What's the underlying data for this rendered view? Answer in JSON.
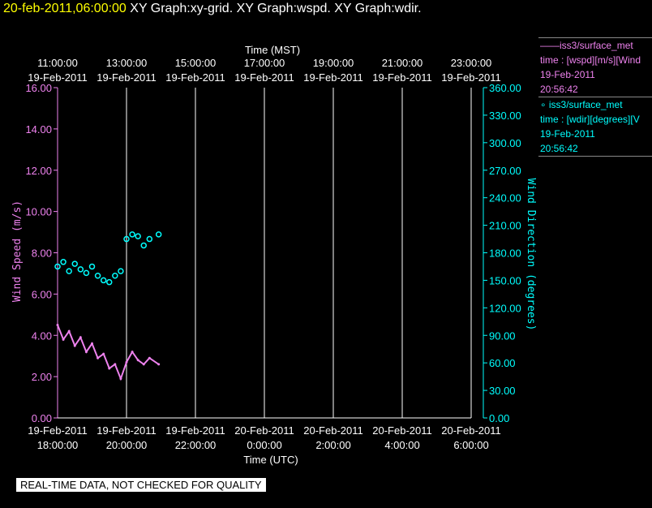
{
  "header": {
    "timestamp": "20-feb-2011,06:00:00",
    "graphs": "XY Graph:xy-grid.  XY Graph:wspd.  XY Graph:wdir."
  },
  "legend": [
    {
      "marker": "——",
      "name": "iss3/surface_met",
      "line1": "time : [wspd][m/s][Wind",
      "date": "19-Feb-2011",
      "time": "20:56:42",
      "color": "#ee82ee"
    },
    {
      "marker": "∘",
      "name": "iss3/surface_met",
      "line1": "time : [wdir][degrees][V",
      "date": "19-Feb-2011",
      "time": "20:56:42",
      "color": "#00ffff"
    }
  ],
  "notice": "REAL-TIME DATA, NOT CHECKED FOR QUALITY",
  "colors": {
    "wspd": "#ee82ee",
    "wdir": "#00ffff",
    "axis_text": "#ffffff",
    "grid": "#ffffff"
  },
  "chart_data": {
    "type": "line",
    "top_axis": {
      "label": "Time (MST)",
      "ticks": [
        {
          "time": "11:00:00",
          "date": "19-Feb-2011"
        },
        {
          "time": "13:00:00",
          "date": "19-Feb-2011"
        },
        {
          "time": "15:00:00",
          "date": "19-Feb-2011"
        },
        {
          "time": "17:00:00",
          "date": "19-Feb-2011"
        },
        {
          "time": "19:00:00",
          "date": "19-Feb-2011"
        },
        {
          "time": "21:00:00",
          "date": "19-Feb-2011"
        },
        {
          "time": "23:00:00",
          "date": "19-Feb-2011"
        }
      ]
    },
    "bottom_axis": {
      "label": "Time (UTC)",
      "ticks": [
        {
          "date": "19-Feb-2011",
          "time": "18:00:00"
        },
        {
          "date": "19-Feb-2011",
          "time": "20:00:00"
        },
        {
          "date": "19-Feb-2011",
          "time": "22:00:00"
        },
        {
          "date": "20-Feb-2011",
          "time": "0:00:00"
        },
        {
          "date": "20-Feb-2011",
          "time": "2:00:00"
        },
        {
          "date": "20-Feb-2011",
          "time": "4:00:00"
        },
        {
          "date": "20-Feb-2011",
          "time": "6:00:00"
        }
      ],
      "range_utc": [
        "2011-02-19 18:00",
        "2011-02-20 06:00"
      ]
    },
    "left_axis": {
      "label": "Wind Speed (m/s)",
      "range": [
        0,
        16
      ],
      "ticks": [
        "0.00",
        "2.00",
        "4.00",
        "6.00",
        "8.00",
        "10.00",
        "12.00",
        "14.00",
        "16.00"
      ]
    },
    "right_axis": {
      "label": "Wind Direction (degrees)",
      "range": [
        0,
        360
      ],
      "ticks": [
        "0.00",
        "30.00",
        "60.00",
        "90.00",
        "120.00",
        "150.00",
        "180.00",
        "210.00",
        "240.00",
        "270.00",
        "300.00",
        "330.00",
        "360.00"
      ]
    },
    "grid": "vertical",
    "series": [
      {
        "name": "wspd",
        "axis": "left",
        "style": "line",
        "data": [
          {
            "t": "2011-02-19 18:00",
            "v": 4.5
          },
          {
            "t": "2011-02-19 18:10",
            "v": 3.8
          },
          {
            "t": "2011-02-19 18:20",
            "v": 4.2
          },
          {
            "t": "2011-02-19 18:30",
            "v": 3.5
          },
          {
            "t": "2011-02-19 18:40",
            "v": 3.9
          },
          {
            "t": "2011-02-19 18:50",
            "v": 3.2
          },
          {
            "t": "2011-02-19 19:00",
            "v": 3.6
          },
          {
            "t": "2011-02-19 19:10",
            "v": 2.9
          },
          {
            "t": "2011-02-19 19:20",
            "v": 3.1
          },
          {
            "t": "2011-02-19 19:30",
            "v": 2.4
          },
          {
            "t": "2011-02-19 19:40",
            "v": 2.6
          },
          {
            "t": "2011-02-19 19:50",
            "v": 1.9
          },
          {
            "t": "2011-02-19 20:00",
            "v": 2.7
          },
          {
            "t": "2011-02-19 20:10",
            "v": 3.2
          },
          {
            "t": "2011-02-19 20:20",
            "v": 2.8
          },
          {
            "t": "2011-02-19 20:30",
            "v": 2.6
          },
          {
            "t": "2011-02-19 20:40",
            "v": 2.9
          },
          {
            "t": "2011-02-19 20:56",
            "v": 2.6
          }
        ]
      },
      {
        "name": "wdir",
        "axis": "right",
        "style": "points",
        "data": [
          {
            "t": "2011-02-19 18:00",
            "v": 165
          },
          {
            "t": "2011-02-19 18:10",
            "v": 170
          },
          {
            "t": "2011-02-19 18:20",
            "v": 160
          },
          {
            "t": "2011-02-19 18:30",
            "v": 168
          },
          {
            "t": "2011-02-19 18:40",
            "v": 162
          },
          {
            "t": "2011-02-19 18:50",
            "v": 158
          },
          {
            "t": "2011-02-19 19:00",
            "v": 165
          },
          {
            "t": "2011-02-19 19:10",
            "v": 155
          },
          {
            "t": "2011-02-19 19:20",
            "v": 150
          },
          {
            "t": "2011-02-19 19:30",
            "v": 148
          },
          {
            "t": "2011-02-19 19:40",
            "v": 155
          },
          {
            "t": "2011-02-19 19:50",
            "v": 160
          },
          {
            "t": "2011-02-19 20:00",
            "v": 195
          },
          {
            "t": "2011-02-19 20:10",
            "v": 200
          },
          {
            "t": "2011-02-19 20:20",
            "v": 198
          },
          {
            "t": "2011-02-19 20:30",
            "v": 188
          },
          {
            "t": "2011-02-19 20:40",
            "v": 195
          },
          {
            "t": "2011-02-19 20:56",
            "v": 200
          }
        ]
      }
    ]
  }
}
